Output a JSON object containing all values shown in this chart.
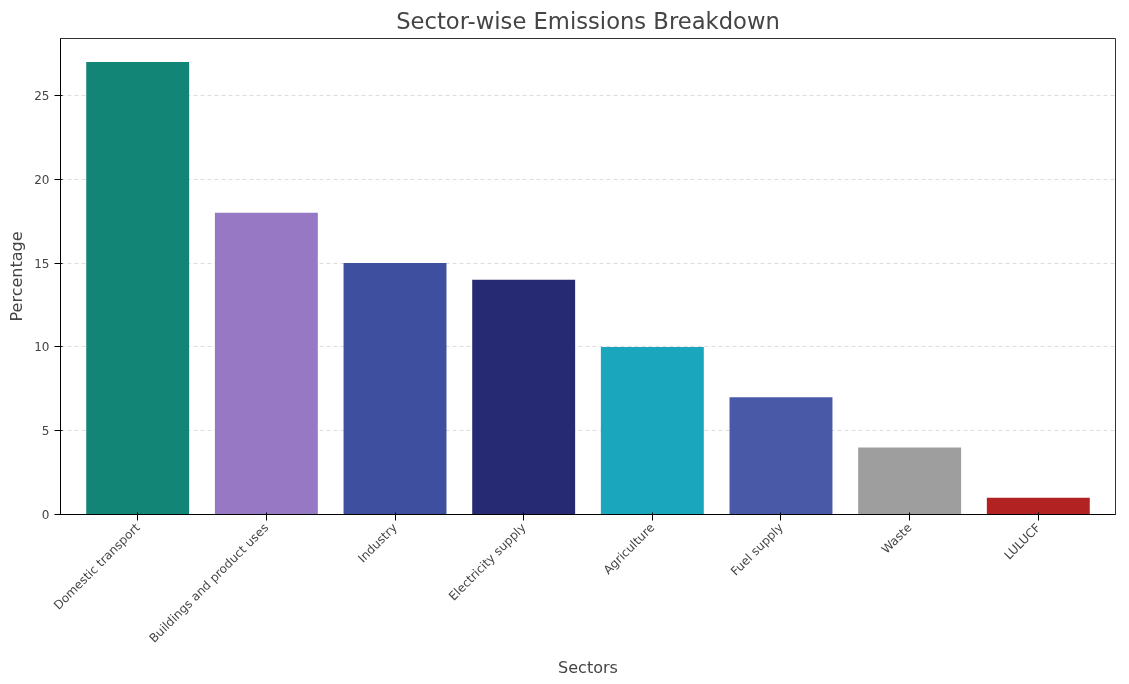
{
  "chart_data": {
    "type": "bar",
    "title": "Sector-wise Emissions Breakdown",
    "xlabel": "Sectors",
    "ylabel": "Percentage",
    "categories": [
      "Domestic transport",
      "Buildings and product uses",
      "Industry",
      "Electricity supply",
      "Agriculture",
      "Fuel supply",
      "Waste",
      "LULUCF"
    ],
    "values": [
      27,
      18,
      15,
      14,
      10,
      7,
      4,
      1
    ],
    "colors": [
      "#138577",
      "#9678c4",
      "#3f4f9f",
      "#252a72",
      "#1aa6bd",
      "#4a58a8",
      "#9e9e9e",
      "#b22222"
    ],
    "ylim": [
      0,
      28.4
    ],
    "yticks": [
      0,
      5,
      10,
      15,
      20,
      25
    ],
    "grid": "y"
  }
}
